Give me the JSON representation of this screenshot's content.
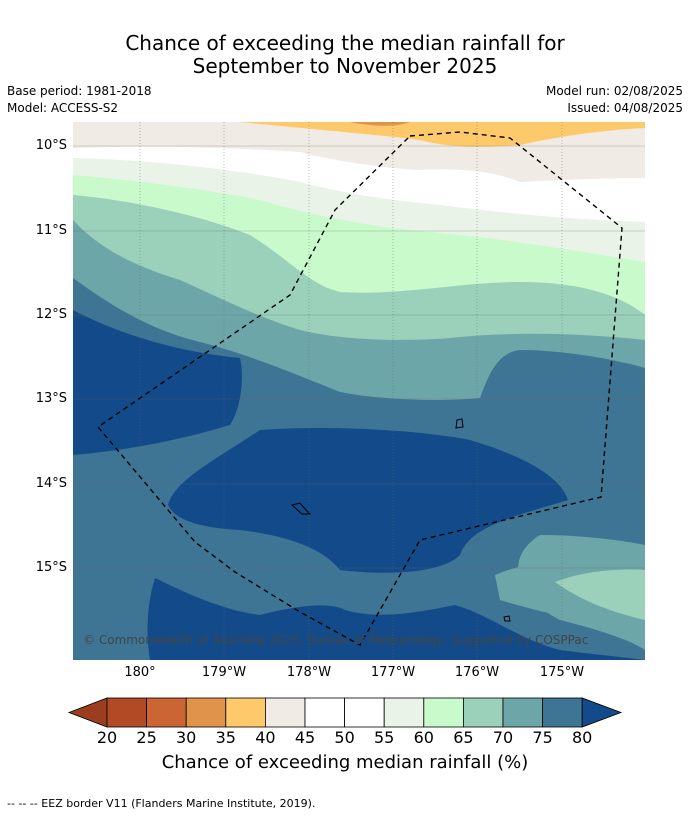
{
  "title": {
    "line1": "Chance of exceeding the median rainfall for",
    "line2": "September to November 2025"
  },
  "info": {
    "base_period": "Base period: 1981-2018",
    "model": "Model: ACCESS-S2",
    "model_run": "Model run: 02/08/2025",
    "issued": "Issued: 04/08/2025"
  },
  "map": {
    "lat_labels": [
      "10°S",
      "11°S",
      "12°S",
      "13°S",
      "14°S",
      "15°S"
    ],
    "lon_labels": [
      "180°",
      "179°W",
      "178°W",
      "177°W",
      "176°W",
      "175°W"
    ],
    "copyright": "© Commonwealth of Australia 2025, Bureau of Meteorology, supported by COSPPac"
  },
  "colorbar": {
    "ticks": [
      "20",
      "25",
      "30",
      "35",
      "40",
      "45",
      "50",
      "55",
      "60",
      "65",
      "70",
      "75",
      "80"
    ],
    "colors": [
      "#9c3d20",
      "#b34a26",
      "#cb6634",
      "#e0934a",
      "#fec96a",
      "#f0ebe4",
      "#ffffff",
      "#ffffff",
      "#e9f3e7",
      "#c8facb",
      "#9bd0bb",
      "#6da6a8",
      "#3e7595",
      "#134b8a"
    ],
    "label": "Chance of exceeding median rainfall (%)"
  },
  "footnote": "--  --  -- EEZ border V11 (Flanders Marine Institute, 2019)."
}
